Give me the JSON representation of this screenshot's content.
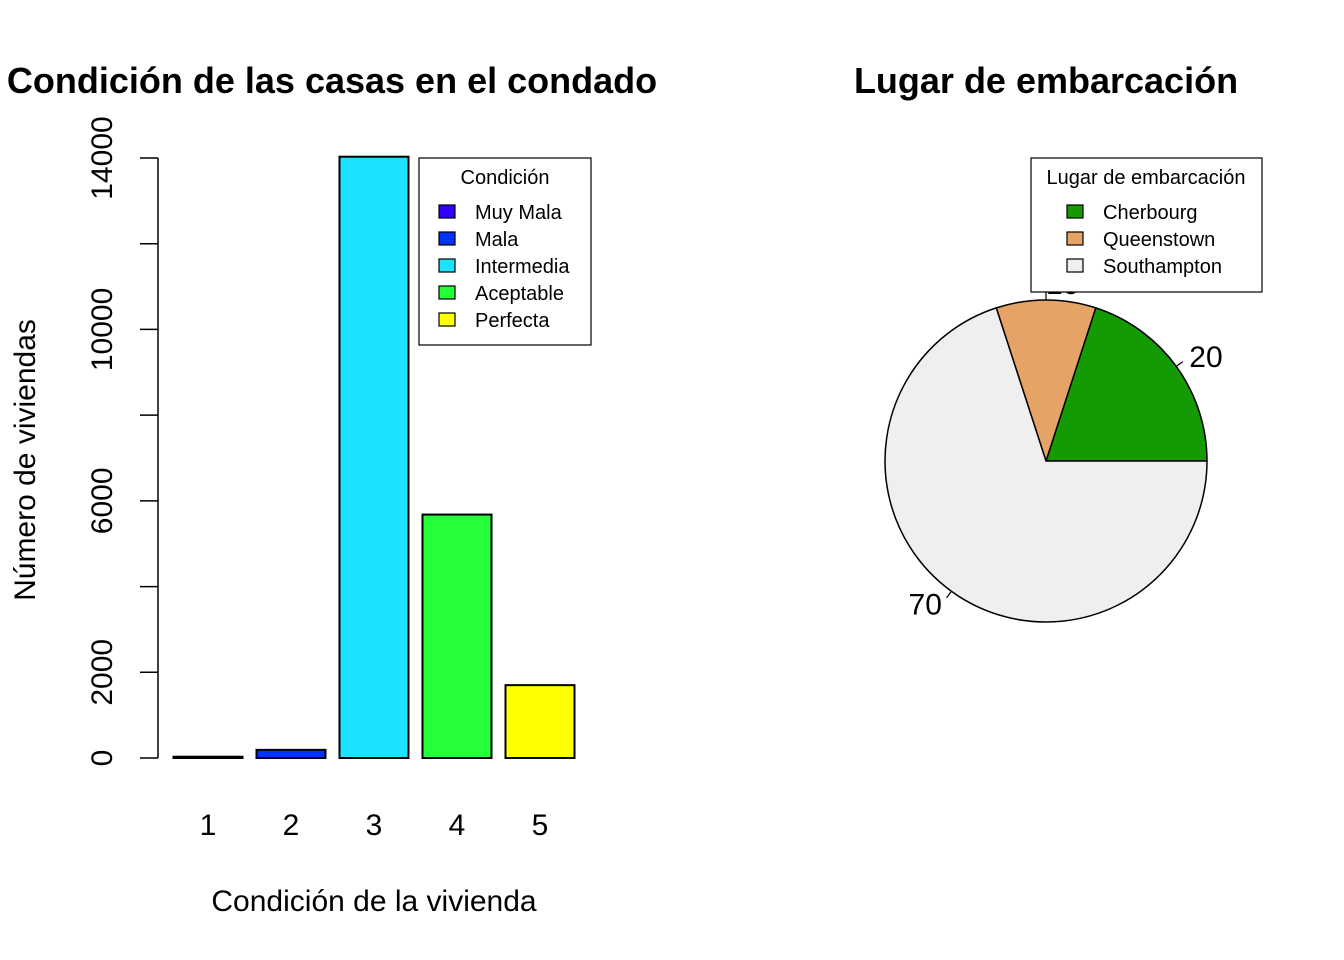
{
  "chart_data": [
    {
      "type": "bar",
      "title": "Condición de las casas en el condado",
      "xlabel": "Condición de la vivienda",
      "ylabel": "Número de viviendas",
      "categories": [
        "1",
        "2",
        "3",
        "4",
        "5"
      ],
      "values": [
        30,
        190,
        14030,
        5680,
        1700
      ],
      "colors": [
        "#3300FF",
        "#0033FF",
        "#1CE1FF",
        "#24FF3A",
        "#FFFF00"
      ],
      "ylim": [
        0,
        14000
      ],
      "yticks": [
        0,
        2000,
        4000,
        6000,
        8000,
        10000,
        12000,
        14000
      ],
      "ytick_labels": [
        {
          "value": 0,
          "label": "0"
        },
        {
          "value": 2000,
          "label": "2000"
        },
        {
          "value": 6000,
          "label": "6000"
        },
        {
          "value": 10000,
          "label": "10000"
        },
        {
          "value": 14000,
          "label": "14000"
        }
      ],
      "grid": false,
      "legend": {
        "title": "Condición",
        "position": "top-right",
        "entries": [
          "Muy Mala",
          "Mala",
          "Intermedia",
          "Aceptable",
          "Perfecta"
        ]
      }
    },
    {
      "type": "pie",
      "title": "Lugar de embarcación",
      "categories": [
        "Cherbourg",
        "Queenstown",
        "Southampton"
      ],
      "values": [
        20,
        10,
        70
      ],
      "labels": [
        "20",
        "10",
        "70"
      ],
      "colors": [
        "#149A03",
        "#E5A465",
        "#EFEFEF"
      ],
      "legend": {
        "title": "Lugar de embarcación",
        "position": "top-right",
        "entries": [
          "Cherbourg",
          "Queenstown",
          "Southampton"
        ]
      }
    }
  ]
}
